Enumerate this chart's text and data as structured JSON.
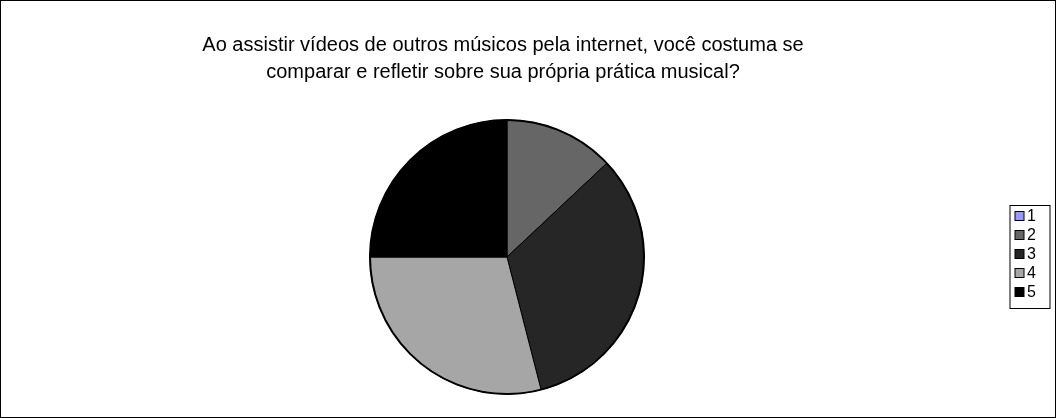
{
  "chart_data": {
    "type": "pie",
    "title": "Ao assistir vídeos de outros músicos pela internet, você costuma se comparar e refletir sobre sua própria prática musical?",
    "categories": [
      "1",
      "2",
      "3",
      "4",
      "5"
    ],
    "values": [
      0,
      13,
      33,
      29,
      25
    ],
    "colors": [
      "#9999ff",
      "#666666",
      "#262626",
      "#a6a6a6",
      "#000000"
    ],
    "legend": "right"
  }
}
